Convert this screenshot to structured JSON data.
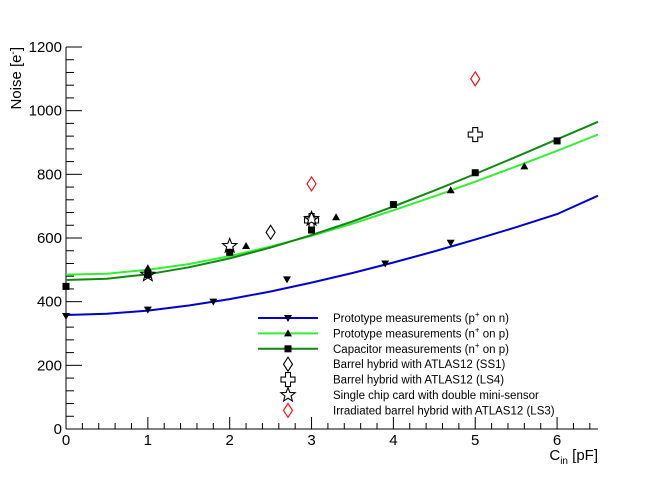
{
  "chart_data": {
    "type": "scatter",
    "xlabel": "C",
    "xlabel_sub": "in",
    "xlabel_unit": " [pF]",
    "ylabel": "Noise [e",
    "ylabel_sup": "-",
    "ylabel_end": "]",
    "xlim": [
      0,
      6.5
    ],
    "ylim": [
      0,
      1200
    ],
    "xticks": [
      "0",
      "1",
      "2",
      "3",
      "4",
      "5",
      "6"
    ],
    "yticks": [
      "0",
      "200",
      "400",
      "600",
      "800",
      "1000",
      "1200"
    ],
    "grid": false,
    "legend_position": "bottom-right",
    "series": [
      {
        "name": "Prototype measurements (p",
        "name_sup": "+",
        "name_end": " on n)",
        "marker": "triangle-down",
        "color": "#000000",
        "line_color": "#0000cc",
        "points": [
          [
            0,
            355
          ],
          [
            1,
            375
          ],
          [
            1.8,
            400
          ],
          [
            2.7,
            470
          ],
          [
            3.9,
            520
          ],
          [
            4.7,
            585
          ]
        ],
        "fit": [
          [
            0,
            358
          ],
          [
            0.5,
            362
          ],
          [
            1,
            372
          ],
          [
            1.5,
            388
          ],
          [
            2,
            408
          ],
          [
            2.5,
            432
          ],
          [
            3,
            460
          ],
          [
            3.5,
            490
          ],
          [
            4,
            523
          ],
          [
            4.5,
            558
          ],
          [
            5,
            595
          ],
          [
            5.5,
            634
          ],
          [
            6,
            675
          ],
          [
            6.5,
            733
          ]
        ]
      },
      {
        "name": "Prototype measurements (n",
        "name_sup": "+",
        "name_end": " on p)",
        "marker": "triangle-up",
        "color": "#000000",
        "line_color": "#33ee33",
        "points": [
          [
            1,
            505
          ],
          [
            2.2,
            575
          ],
          [
            3.3,
            665
          ],
          [
            4.7,
            750
          ],
          [
            5.6,
            825
          ]
        ],
        "fit": [
          [
            0,
            485
          ],
          [
            0.5,
            488
          ],
          [
            1,
            500
          ],
          [
            1.5,
            518
          ],
          [
            2,
            543
          ],
          [
            2.5,
            573
          ],
          [
            3,
            607
          ],
          [
            3.5,
            645
          ],
          [
            4,
            687
          ],
          [
            4.5,
            731
          ],
          [
            5,
            777
          ],
          [
            5.5,
            825
          ],
          [
            6,
            874
          ],
          [
            6.5,
            925
          ]
        ]
      },
      {
        "name": "Capacitor measurements (n",
        "name_sup": "+",
        "name_end": " on p)",
        "marker": "square",
        "color": "#000000",
        "line_color": "#118811",
        "points": [
          [
            0,
            448
          ],
          [
            1,
            485
          ],
          [
            2,
            555
          ],
          [
            3,
            625
          ],
          [
            4,
            705
          ],
          [
            5,
            805
          ],
          [
            6,
            905
          ]
        ],
        "fit": [
          [
            0,
            468
          ],
          [
            0.5,
            472
          ],
          [
            1,
            486
          ],
          [
            1.5,
            508
          ],
          [
            2,
            536
          ],
          [
            2.5,
            570
          ],
          [
            3,
            609
          ],
          [
            3.5,
            652
          ],
          [
            4,
            699
          ],
          [
            4.5,
            749
          ],
          [
            5,
            801
          ],
          [
            5.5,
            855
          ],
          [
            6,
            910
          ],
          [
            6.5,
            965
          ]
        ]
      },
      {
        "name": "Barrel hybrid with ATLAS12 (SS1)",
        "marker": "diamond-open",
        "color": "#000000",
        "points": [
          [
            2.5,
            618
          ]
        ]
      },
      {
        "name": "Barrel hybrid with ATLAS12 (LS4)",
        "marker": "cross-open",
        "color": "#000000",
        "points": [
          [
            3,
            655
          ],
          [
            5,
            925
          ]
        ]
      },
      {
        "name": "Single chip card with double mini-sensor",
        "marker": "star-open",
        "color": "#000000",
        "points": [
          [
            1,
            485
          ],
          [
            2,
            575
          ],
          [
            3,
            660
          ]
        ]
      },
      {
        "name": "Irradiated barrel hybrid with ATLAS12 (LS3)",
        "marker": "diamond-open",
        "color": "#ff0000",
        "points": [
          [
            3,
            770
          ],
          [
            5,
            1100
          ]
        ]
      }
    ]
  }
}
